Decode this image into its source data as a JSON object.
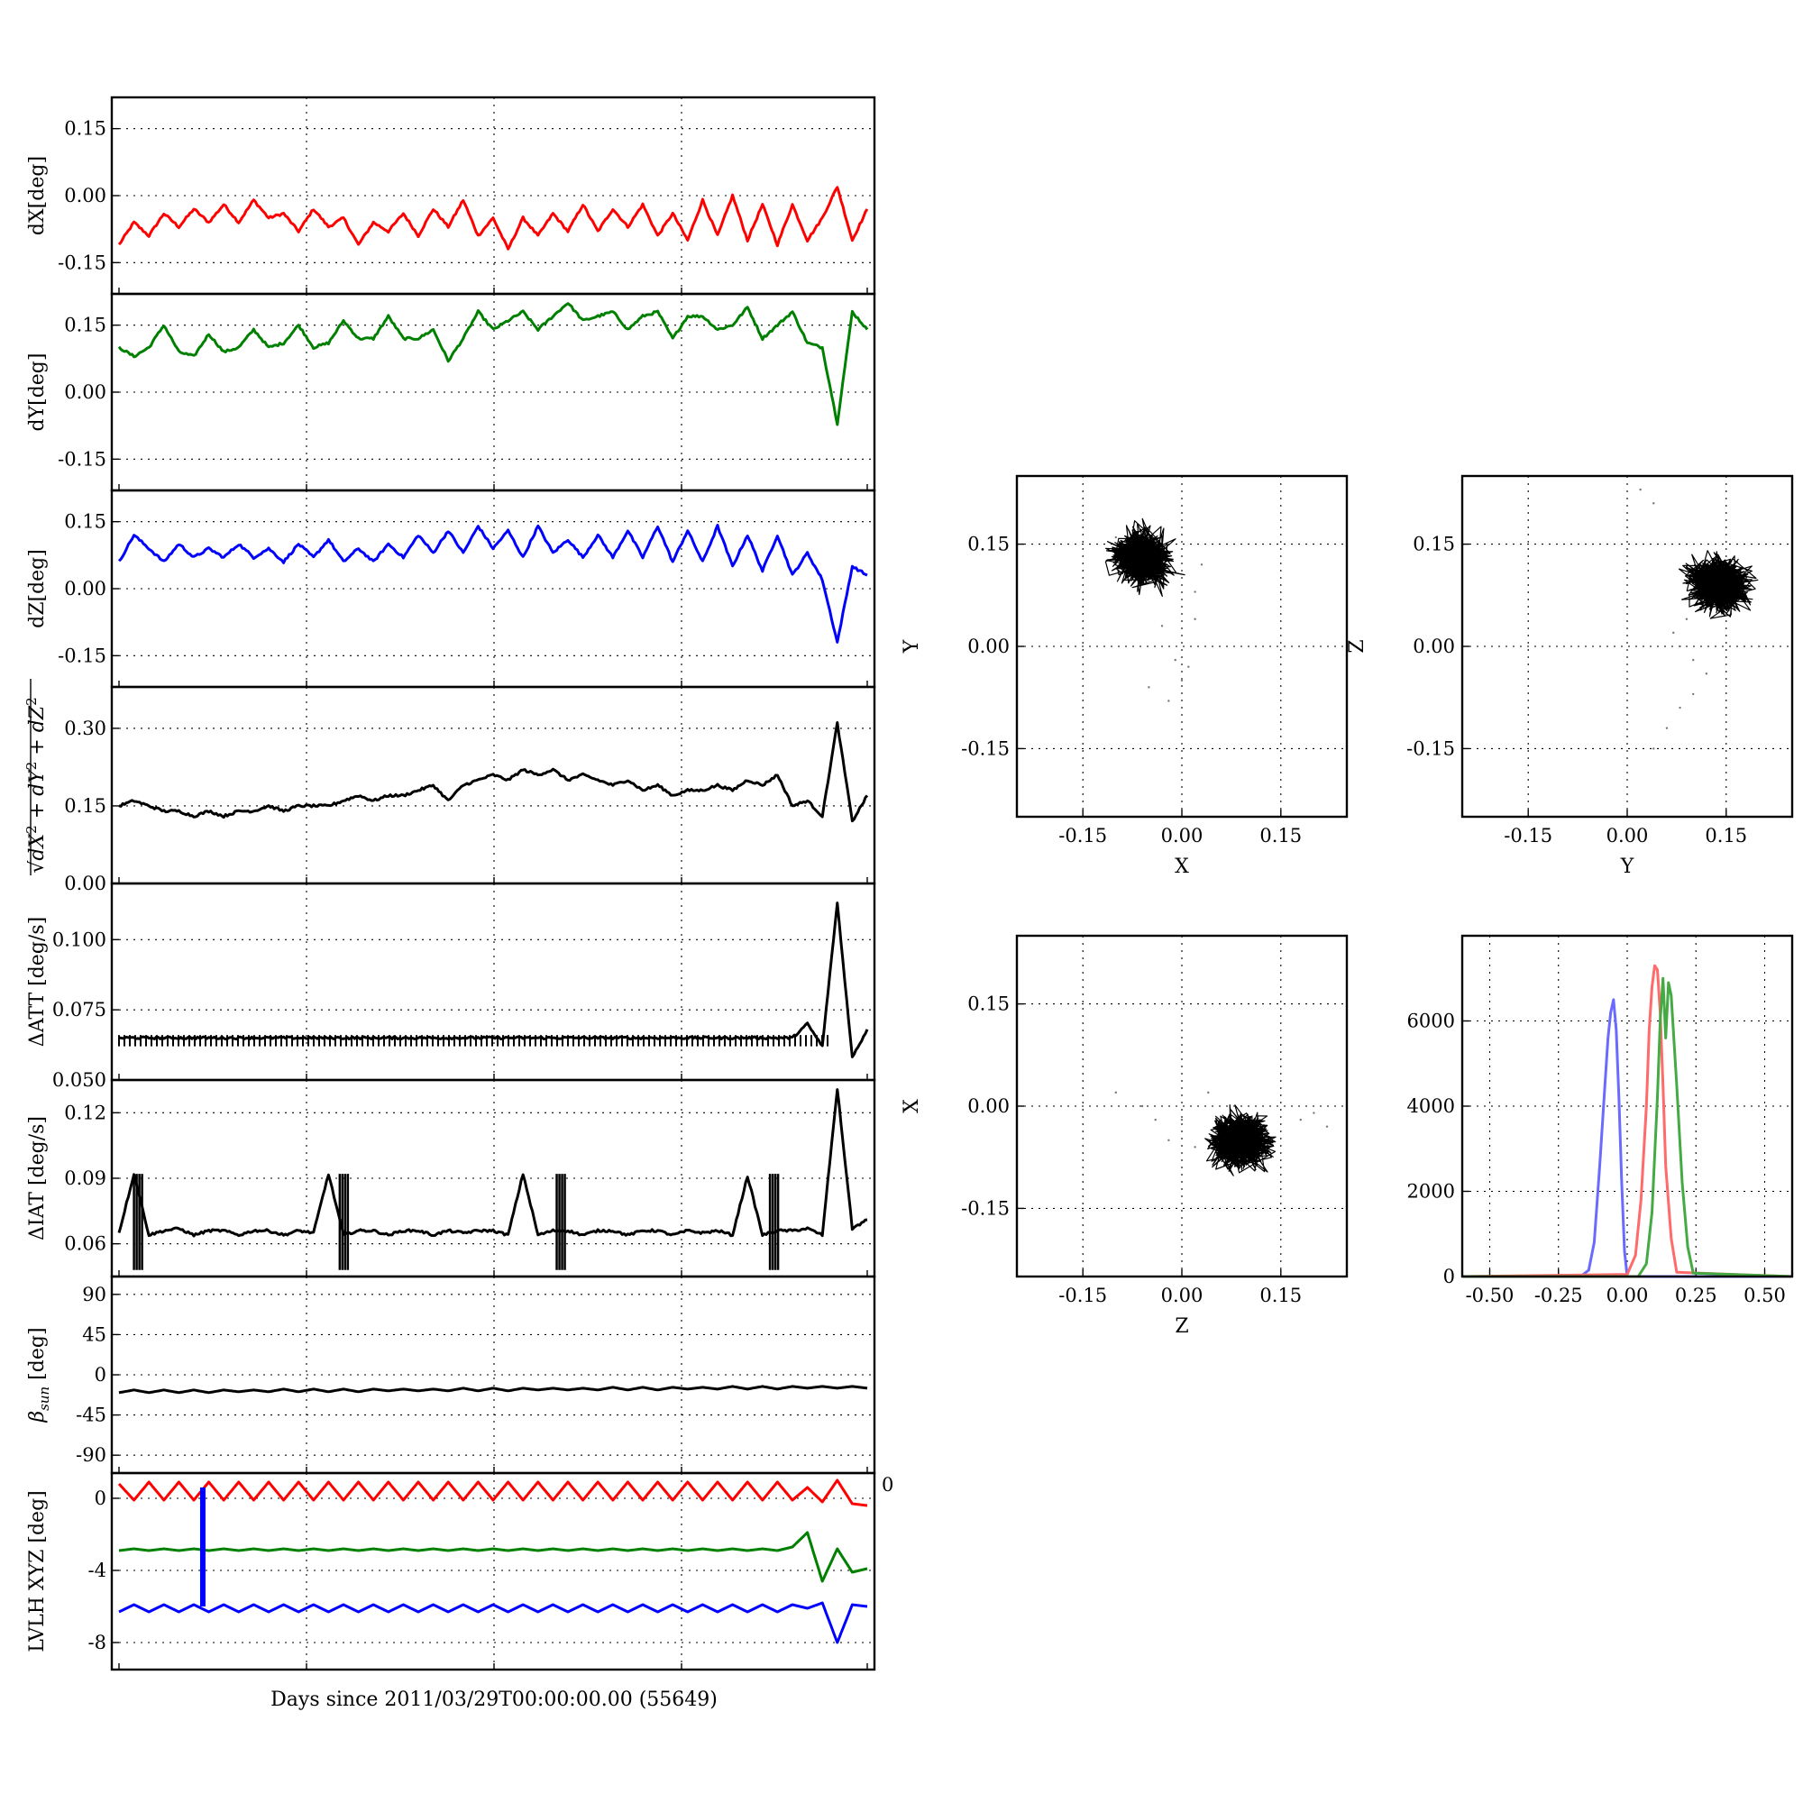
{
  "figure": {
    "xlabel": "Days since 2011/03/29T00:00:00.00 (55649)"
  },
  "chart_data": [
    {
      "type": "line",
      "panel": "dX",
      "ylabel": "dX[deg]",
      "yticks": [
        "0.15",
        "0.00",
        "-0.15"
      ],
      "ylim": [
        -0.22,
        0.22
      ],
      "color": "#ff0000",
      "series": [
        {
          "values": [
            -0.11,
            -0.06,
            -0.09,
            -0.04,
            -0.07,
            -0.03,
            -0.06,
            -0.02,
            -0.06,
            -0.01,
            -0.05,
            -0.04,
            -0.08,
            -0.03,
            -0.07,
            -0.05,
            -0.11,
            -0.06,
            -0.08,
            -0.04,
            -0.09,
            -0.03,
            -0.07,
            -0.01,
            -0.09,
            -0.05,
            -0.12,
            -0.05,
            -0.09,
            -0.04,
            -0.08,
            -0.02,
            -0.08,
            -0.03,
            -0.07,
            -0.02,
            -0.09,
            -0.04,
            -0.1,
            -0.01,
            -0.09,
            0.0,
            -0.1,
            -0.02,
            -0.11,
            -0.02,
            -0.1,
            -0.05,
            0.02,
            -0.1,
            -0.03
          ]
        }
      ]
    },
    {
      "type": "line",
      "panel": "dY",
      "ylabel": "dY[deg]",
      "yticks": [
        "0.15",
        "0.00",
        "-0.15"
      ],
      "ylim": [
        -0.22,
        0.22
      ],
      "color": "#008000",
      "series": [
        {
          "values": [
            0.1,
            0.08,
            0.1,
            0.15,
            0.09,
            0.08,
            0.13,
            0.09,
            0.1,
            0.14,
            0.1,
            0.11,
            0.15,
            0.1,
            0.11,
            0.16,
            0.12,
            0.12,
            0.17,
            0.12,
            0.12,
            0.14,
            0.07,
            0.12,
            0.18,
            0.14,
            0.16,
            0.18,
            0.14,
            0.17,
            0.2,
            0.16,
            0.17,
            0.18,
            0.14,
            0.17,
            0.18,
            0.12,
            0.17,
            0.17,
            0.14,
            0.15,
            0.19,
            0.12,
            0.15,
            0.18,
            0.11,
            0.1,
            -0.07,
            0.18,
            0.14
          ]
        }
      ]
    },
    {
      "type": "line",
      "panel": "dZ",
      "ylabel": "dZ[deg]",
      "yticks": [
        "0.15",
        "0.00",
        "-0.15"
      ],
      "ylim": [
        -0.22,
        0.22
      ],
      "color": "#0000ff",
      "series": [
        {
          "values": [
            0.06,
            0.12,
            0.09,
            0.06,
            0.1,
            0.07,
            0.09,
            0.07,
            0.1,
            0.07,
            0.09,
            0.06,
            0.1,
            0.07,
            0.11,
            0.06,
            0.09,
            0.06,
            0.1,
            0.07,
            0.12,
            0.08,
            0.13,
            0.08,
            0.14,
            0.09,
            0.13,
            0.07,
            0.14,
            0.08,
            0.11,
            0.07,
            0.12,
            0.07,
            0.13,
            0.07,
            0.14,
            0.06,
            0.13,
            0.06,
            0.14,
            0.05,
            0.12,
            0.04,
            0.12,
            0.03,
            0.08,
            0.02,
            -0.12,
            0.05,
            0.03
          ]
        }
      ]
    },
    {
      "type": "line",
      "panel": "dR",
      "ylabel_tex": "sqrt(dX^2 + dY^2 + dZ^2)",
      "yticks": [
        "0.30",
        "0.15",
        "0.00"
      ],
      "ylim": [
        0.0,
        0.38
      ],
      "color": "#000000",
      "series": [
        {
          "values": [
            0.15,
            0.16,
            0.15,
            0.14,
            0.14,
            0.13,
            0.14,
            0.13,
            0.14,
            0.14,
            0.15,
            0.14,
            0.15,
            0.15,
            0.15,
            0.16,
            0.17,
            0.16,
            0.17,
            0.17,
            0.18,
            0.19,
            0.16,
            0.19,
            0.2,
            0.21,
            0.2,
            0.22,
            0.21,
            0.22,
            0.2,
            0.21,
            0.2,
            0.19,
            0.2,
            0.18,
            0.19,
            0.17,
            0.18,
            0.18,
            0.19,
            0.18,
            0.2,
            0.19,
            0.21,
            0.15,
            0.16,
            0.13,
            0.31,
            0.12,
            0.17
          ]
        }
      ]
    },
    {
      "type": "line",
      "panel": "dATT",
      "ylabel": "ΔATT [deg/s]",
      "yticks": [
        "0.100",
        "0.075",
        "0.050"
      ],
      "ylim": [
        0.05,
        0.12
      ],
      "color": "#000000",
      "series": [
        {
          "values": [
            0.065,
            0.065,
            0.065,
            0.065,
            0.065,
            0.065,
            0.065,
            0.065,
            0.065,
            0.065,
            0.065,
            0.065,
            0.065,
            0.065,
            0.065,
            0.065,
            0.065,
            0.065,
            0.065,
            0.065,
            0.065,
            0.065,
            0.065,
            0.065,
            0.065,
            0.065,
            0.065,
            0.065,
            0.065,
            0.065,
            0.065,
            0.065,
            0.065,
            0.065,
            0.065,
            0.065,
            0.065,
            0.065,
            0.065,
            0.065,
            0.065,
            0.065,
            0.065,
            0.065,
            0.065,
            0.065,
            0.07,
            0.062,
            0.113,
            0.058,
            0.068
          ]
        }
      ]
    },
    {
      "type": "line",
      "panel": "dIAT",
      "ylabel": "ΔIAT [deg/s]",
      "yticks": [
        "0.12",
        "0.09",
        "0.06"
      ],
      "ylim": [
        0.045,
        0.135
      ],
      "color": "#000000",
      "series": [
        {
          "values": [
            0.065,
            0.092,
            0.064,
            0.066,
            0.067,
            0.064,
            0.066,
            0.066,
            0.064,
            0.066,
            0.066,
            0.064,
            0.066,
            0.065,
            0.092,
            0.064,
            0.066,
            0.066,
            0.064,
            0.066,
            0.066,
            0.064,
            0.066,
            0.065,
            0.066,
            0.066,
            0.064,
            0.092,
            0.064,
            0.066,
            0.066,
            0.064,
            0.066,
            0.066,
            0.064,
            0.066,
            0.066,
            0.064,
            0.066,
            0.065,
            0.066,
            0.064,
            0.091,
            0.064,
            0.066,
            0.066,
            0.067,
            0.064,
            0.131,
            0.067,
            0.071
          ]
        }
      ]
    },
    {
      "type": "line",
      "panel": "beta_sun",
      "ylabel_tex": "beta_sun [deg]",
      "yticks": [
        "90",
        "45",
        "0",
        "-45",
        "-90"
      ],
      "ylim": [
        -110,
        110
      ],
      "color": "#000000",
      "series": [
        {
          "values": [
            -20,
            -17,
            -20,
            -17,
            -20,
            -17,
            -20,
            -17,
            -19,
            -17,
            -19,
            -16,
            -19,
            -16,
            -19,
            -16,
            -19,
            -16,
            -18,
            -16,
            -18,
            -16,
            -18,
            -15,
            -18,
            -15,
            -18,
            -15,
            -17,
            -15,
            -17,
            -15,
            -17,
            -14,
            -17,
            -14,
            -17,
            -14,
            -16,
            -14,
            -16,
            -13,
            -16,
            -13,
            -16,
            -13,
            -15,
            -13,
            -15,
            -13,
            -15
          ]
        }
      ]
    },
    {
      "type": "line",
      "panel": "LVLH",
      "ylabel": "LVLH XYZ [deg]",
      "yticks": [
        "0",
        "-4",
        "-8"
      ],
      "ylim": [
        -9.5,
        1.4
      ],
      "extra_tick": "0",
      "series": [
        {
          "color": "#ff0000",
          "values": [
            0.8,
            -0.1,
            0.9,
            -0.1,
            0.9,
            -0.1,
            0.9,
            -0.1,
            0.9,
            -0.1,
            0.9,
            -0.1,
            0.9,
            -0.1,
            0.9,
            -0.1,
            0.9,
            -0.1,
            0.9,
            -0.1,
            0.9,
            -0.1,
            0.9,
            -0.1,
            0.9,
            -0.1,
            0.9,
            -0.1,
            0.9,
            -0.1,
            0.9,
            -0.1,
            0.9,
            -0.1,
            0.9,
            -0.1,
            0.9,
            -0.1,
            0.9,
            -0.1,
            0.9,
            -0.1,
            0.9,
            -0.1,
            0.9,
            -0.1,
            0.6,
            -0.2,
            1.0,
            -0.3,
            -0.4
          ]
        },
        {
          "color": "#008000",
          "values": [
            -2.9,
            -2.8,
            -2.9,
            -2.8,
            -2.9,
            -2.8,
            -2.9,
            -2.8,
            -2.9,
            -2.8,
            -2.9,
            -2.8,
            -2.9,
            -2.8,
            -2.9,
            -2.8,
            -2.9,
            -2.8,
            -2.9,
            -2.8,
            -2.9,
            -2.8,
            -2.9,
            -2.8,
            -2.9,
            -2.8,
            -2.9,
            -2.8,
            -2.9,
            -2.8,
            -2.9,
            -2.8,
            -2.9,
            -2.8,
            -2.9,
            -2.8,
            -2.9,
            -2.8,
            -2.9,
            -2.8,
            -2.9,
            -2.8,
            -2.9,
            -2.8,
            -2.9,
            -2.7,
            -1.9,
            -4.6,
            -2.8,
            -4.1,
            -3.9
          ]
        },
        {
          "color": "#0000ff",
          "values": [
            -6.3,
            -5.9,
            -6.3,
            -5.9,
            -6.3,
            -5.9,
            -6.3,
            -5.9,
            -6.3,
            -5.9,
            -6.3,
            -5.9,
            -6.3,
            -5.9,
            -6.3,
            -5.9,
            -6.3,
            -5.9,
            -6.3,
            -5.9,
            -6.3,
            -5.9,
            -6.3,
            -5.9,
            -6.3,
            -5.9,
            -6.3,
            -5.9,
            -6.3,
            -5.9,
            -6.3,
            -5.9,
            -6.3,
            -5.9,
            -6.3,
            -5.9,
            -6.3,
            -5.9,
            -6.3,
            -5.9,
            -6.3,
            -5.9,
            -6.3,
            -5.9,
            -6.3,
            -5.9,
            -6.1,
            -5.8,
            -8.0,
            -5.9,
            -6.0
          ]
        }
      ],
      "marker": {
        "color": "#0000ff",
        "x_fraction": 0.112,
        "y_from": 0.6,
        "y_to": -6.0
      }
    },
    {
      "type": "scatter",
      "panel": "XY",
      "xlabel": "X",
      "ylabel": "Y",
      "xticks": [
        "-0.15",
        "0.00",
        "0.15"
      ],
      "yticks": [
        "0.15",
        "0.00",
        "-0.15"
      ],
      "xlim": [
        -0.25,
        0.25
      ],
      "ylim": [
        -0.25,
        0.25
      ],
      "cluster": {
        "cx": -0.06,
        "cy": 0.13,
        "sx": 0.032,
        "sy": 0.028,
        "n": 900
      },
      "sparse": [
        [
          -0.03,
          0.03
        ],
        [
          -0.01,
          -0.02
        ],
        [
          0.0,
          -0.05
        ],
        [
          -0.02,
          -0.08
        ],
        [
          0.02,
          0.08
        ],
        [
          0.03,
          0.12
        ],
        [
          -0.1,
          0.16
        ],
        [
          0.01,
          -0.03
        ],
        [
          -0.05,
          -0.06
        ],
        [
          0.02,
          0.04
        ]
      ]
    },
    {
      "type": "scatter",
      "panel": "YZ",
      "xlabel": "Y",
      "ylabel": "Z",
      "xticks": [
        "-0.15",
        "0.00",
        "0.15"
      ],
      "yticks": [
        "0.15",
        "0.00",
        "-0.15"
      ],
      "xlim": [
        -0.25,
        0.25
      ],
      "ylim": [
        -0.25,
        0.25
      ],
      "cluster": {
        "cx": 0.14,
        "cy": 0.09,
        "sx": 0.034,
        "sy": 0.028,
        "n": 900
      },
      "sparse": [
        [
          0.02,
          0.23
        ],
        [
          0.04,
          0.21
        ],
        [
          0.08,
          0.0
        ],
        [
          0.1,
          -0.02
        ],
        [
          0.12,
          -0.04
        ],
        [
          0.1,
          -0.07
        ],
        [
          0.08,
          -0.09
        ],
        [
          0.06,
          -0.12
        ],
        [
          0.07,
          0.02
        ],
        [
          0.09,
          0.04
        ],
        [
          0.2,
          0.0
        ],
        [
          0.04,
          -0.15
        ]
      ]
    },
    {
      "type": "scatter",
      "panel": "ZX",
      "xlabel": "Z",
      "ylabel": "X",
      "xticks": [
        "-0.15",
        "0.00",
        "0.15"
      ],
      "yticks": [
        "0.15",
        "0.00",
        "-0.15"
      ],
      "xlim": [
        -0.25,
        0.25
      ],
      "ylim": [
        -0.25,
        0.25
      ],
      "cluster": {
        "cx": 0.09,
        "cy": -0.05,
        "sx": 0.032,
        "sy": 0.03,
        "n": 900
      },
      "sparse": [
        [
          -0.1,
          0.02
        ],
        [
          -0.04,
          -0.02
        ],
        [
          -0.02,
          -0.05
        ],
        [
          0.0,
          -0.02
        ],
        [
          0.02,
          -0.06
        ],
        [
          0.04,
          0.02
        ],
        [
          0.18,
          -0.02
        ],
        [
          0.22,
          -0.03
        ],
        [
          0.2,
          -0.01
        ],
        [
          -0.06,
          0.0
        ]
      ]
    },
    {
      "type": "line",
      "panel": "histogram",
      "xticks": [
        "-0.50",
        "-0.25",
        "0.00",
        "0.25",
        "0.50"
      ],
      "yticks": [
        "6000",
        "4000",
        "2000",
        "0"
      ],
      "xlim": [
        -0.6,
        0.6
      ],
      "ylim": [
        0,
        8000
      ],
      "series": [
        {
          "color": "#6a6aff",
          "x": [
            -0.6,
            -0.17,
            -0.14,
            -0.12,
            -0.1,
            -0.08,
            -0.07,
            -0.06,
            -0.05,
            -0.04,
            -0.03,
            -0.02,
            -0.01,
            0.0,
            0.6
          ],
          "values": [
            0,
            0,
            150,
            800,
            2600,
            4600,
            5600,
            6200,
            6500,
            5800,
            4200,
            2200,
            600,
            0,
            0
          ]
        },
        {
          "color": "#ff6a6a",
          "x": [
            -0.6,
            0.0,
            0.03,
            0.05,
            0.07,
            0.08,
            0.09,
            0.1,
            0.11,
            0.12,
            0.13,
            0.14,
            0.16,
            0.18,
            0.6
          ],
          "values": [
            0,
            50,
            500,
            1800,
            4000,
            5800,
            6800,
            7300,
            7200,
            6200,
            4500,
            2600,
            900,
            100,
            0
          ]
        },
        {
          "color": "#44aa44",
          "x": [
            -0.6,
            0.04,
            0.07,
            0.09,
            0.11,
            0.12,
            0.13,
            0.14,
            0.15,
            0.16,
            0.18,
            0.2,
            0.22,
            0.24,
            0.6
          ],
          "values": [
            0,
            0,
            300,
            1500,
            4200,
            6000,
            7000,
            5600,
            6900,
            6600,
            4500,
            2200,
            700,
            80,
            0
          ]
        }
      ]
    }
  ]
}
